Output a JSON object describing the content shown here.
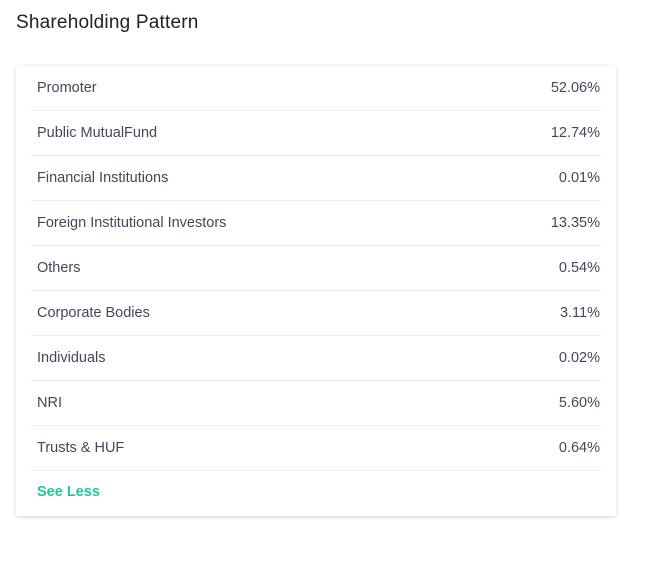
{
  "title": "Shareholding Pattern",
  "rows": [
    {
      "label": "Promoter",
      "value": "52.06%"
    },
    {
      "label": "Public MutualFund",
      "value": "12.74%"
    },
    {
      "label": "Financial Institutions",
      "value": "0.01%"
    },
    {
      "label": "Foreign Institutional Investors",
      "value": "13.35%"
    },
    {
      "label": "Others",
      "value": "0.54%"
    },
    {
      "label": "Corporate Bodies",
      "value": "3.11%"
    },
    {
      "label": "Individuals",
      "value": "0.02%"
    },
    {
      "label": "NRI",
      "value": "5.60%"
    },
    {
      "label": "Trusts & HUF",
      "value": "0.64%"
    }
  ],
  "see_less": "See Less",
  "colors": {
    "accent": "#1fc99b"
  }
}
